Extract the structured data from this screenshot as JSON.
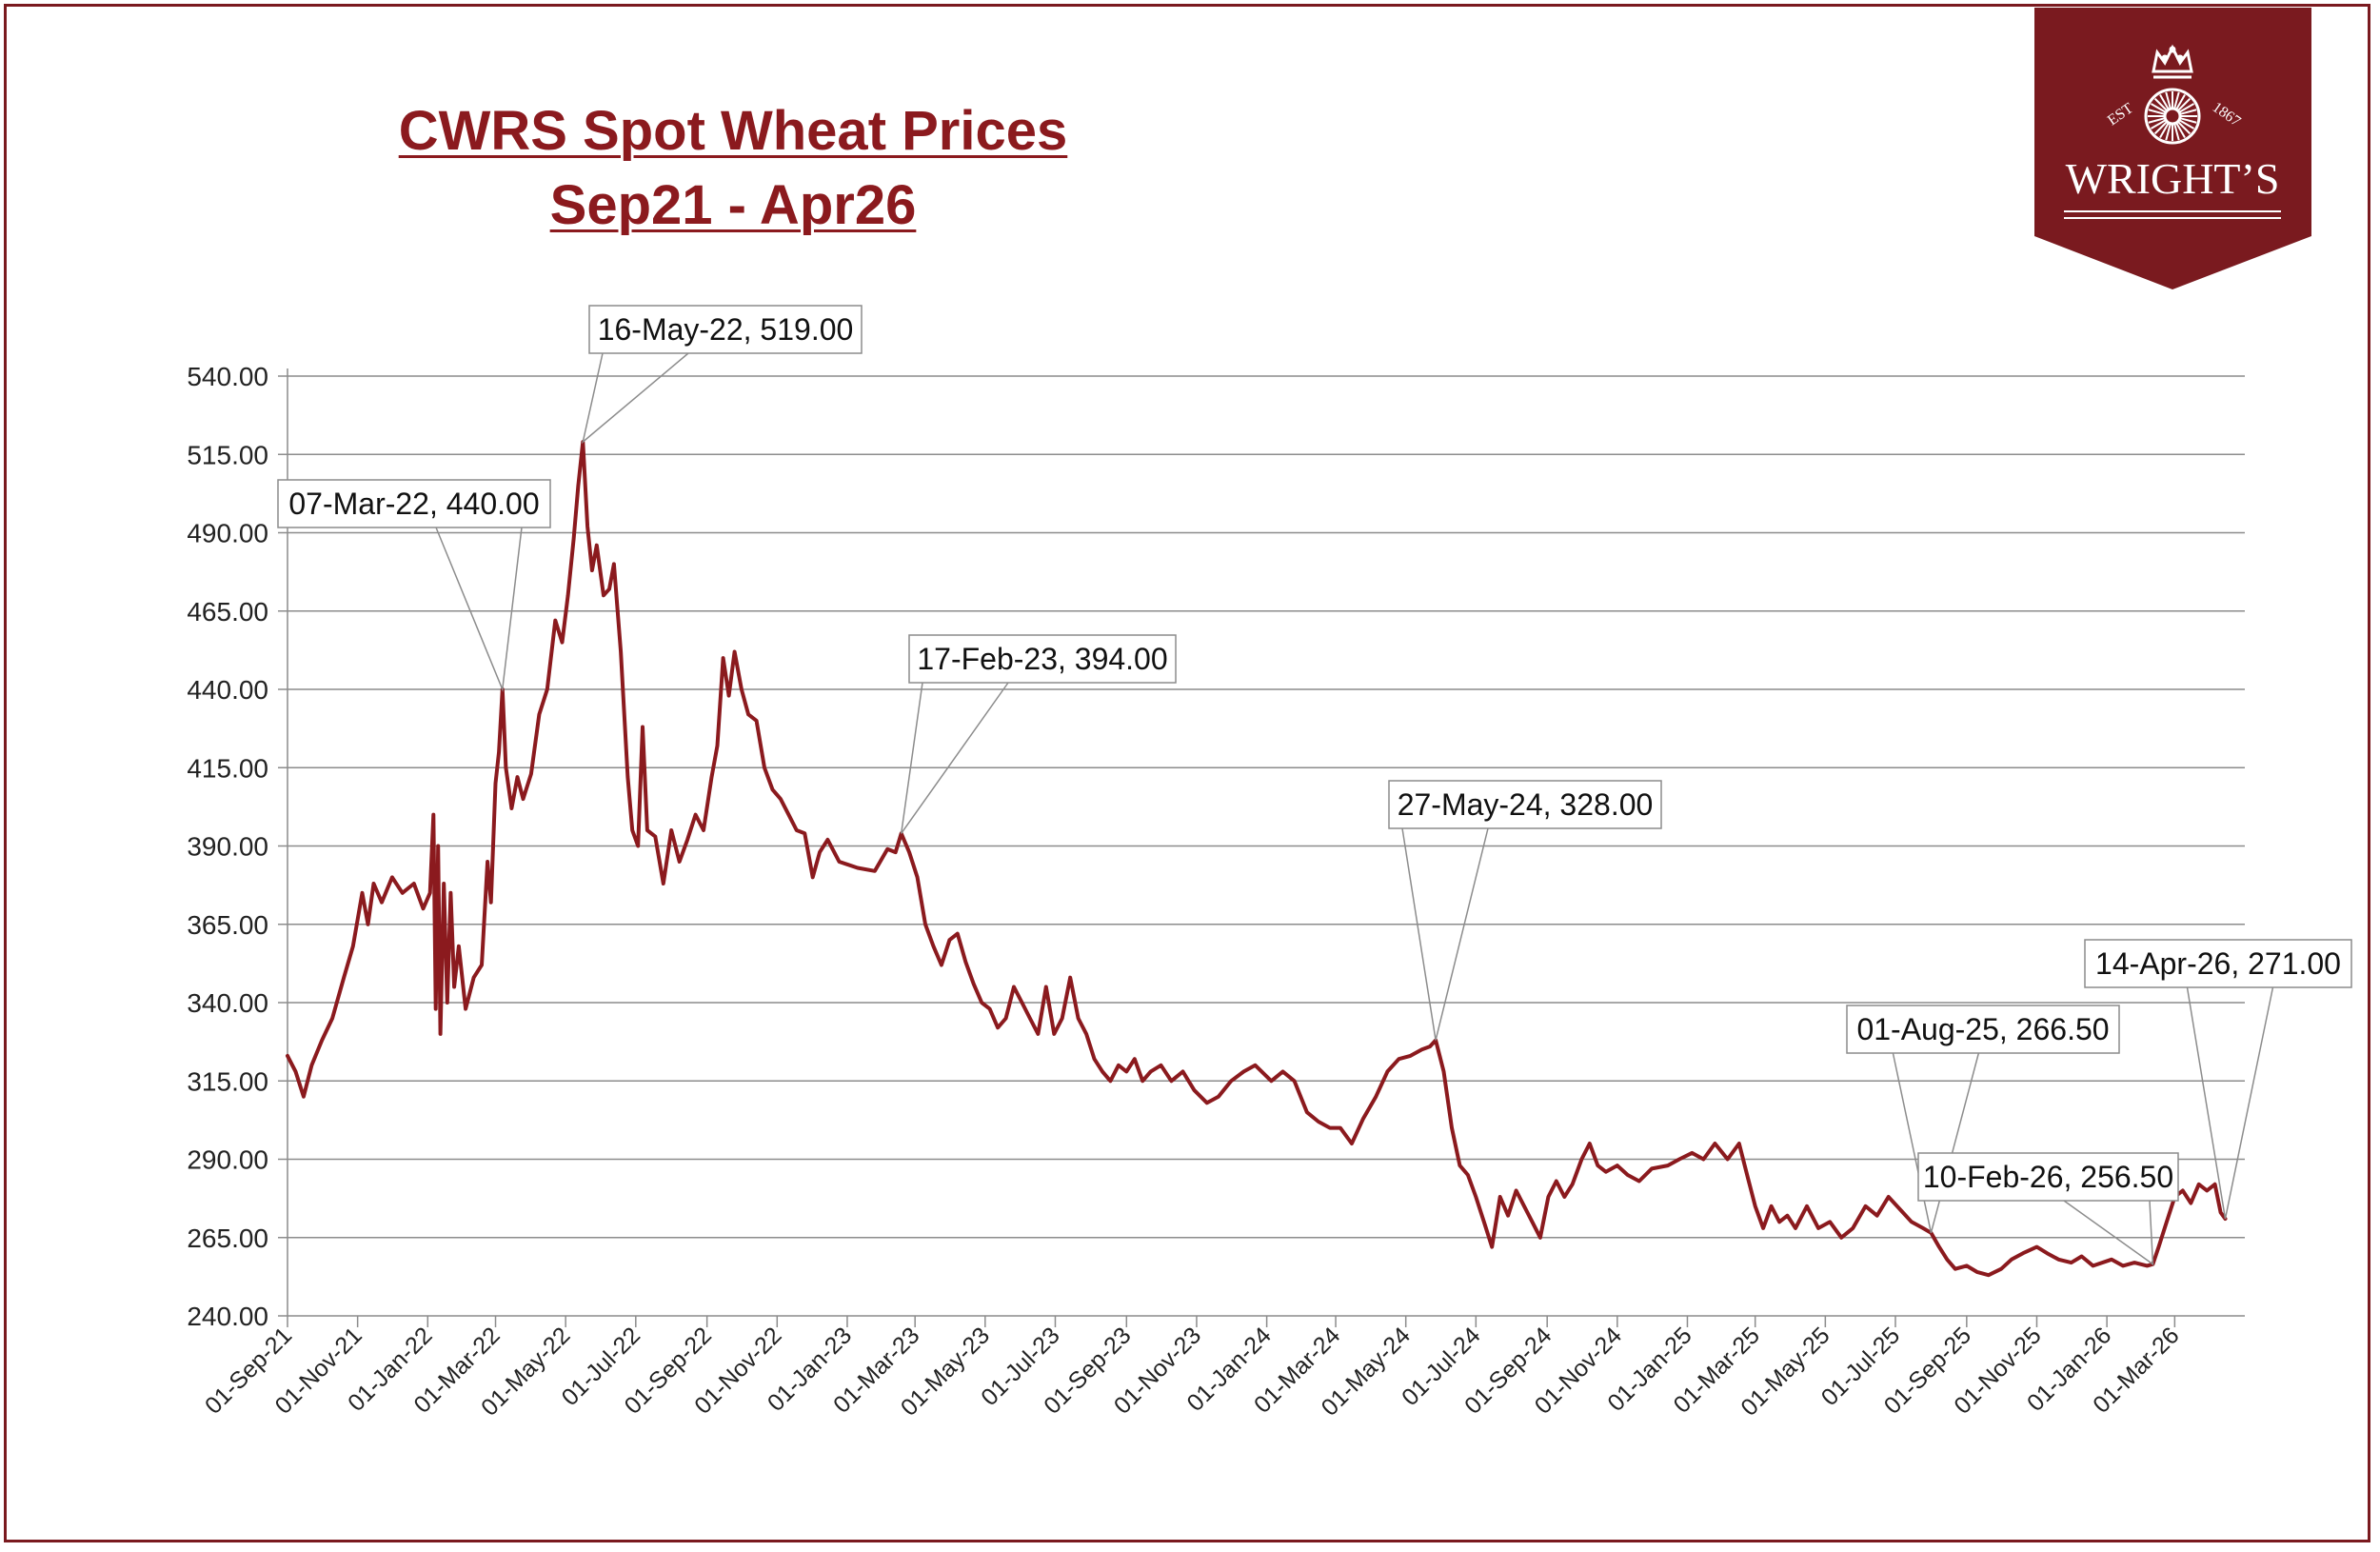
{
  "chart_data": {
    "type": "line",
    "title": "CWRS Spot Wheat Prices",
    "subtitle": "Sep21 - Apr26",
    "xlabel": "",
    "ylabel": "",
    "ylim": [
      240,
      540
    ],
    "y_ticks": [
      "240.00",
      "265.00",
      "290.00",
      "315.00",
      "340.00",
      "365.00",
      "390.00",
      "415.00",
      "440.00",
      "465.00",
      "490.00",
      "515.00",
      "540.00"
    ],
    "x_ticks": [
      "01-Sep-21",
      "01-Nov-21",
      "01-Jan-22",
      "01-Mar-22",
      "01-May-22",
      "01-Jul-22",
      "01-Sep-22",
      "01-Nov-22",
      "01-Jan-23",
      "01-Mar-23",
      "01-May-23",
      "01-Jul-23",
      "01-Sep-23",
      "01-Nov-23",
      "01-Jan-24",
      "01-Mar-24",
      "01-May-24",
      "01-Jul-24",
      "01-Sep-24",
      "01-Nov-24",
      "01-Jan-25",
      "01-Mar-25",
      "01-May-25",
      "01-Jul-25",
      "01-Sep-25",
      "01-Nov-25",
      "01-Jan-26",
      "01-Mar-26"
    ],
    "grid": true,
    "series": [
      {
        "name": "CWRS Spot Wheat Price",
        "color": "#8b1a1e",
        "points": [
          [
            "2021-09-01",
            323
          ],
          [
            "2021-09-08",
            318
          ],
          [
            "2021-09-15",
            310
          ],
          [
            "2021-09-22",
            320
          ],
          [
            "2021-10-01",
            328
          ],
          [
            "2021-10-10",
            335
          ],
          [
            "2021-10-20",
            348
          ],
          [
            "2021-10-28",
            358
          ],
          [
            "2021-11-05",
            375
          ],
          [
            "2021-11-10",
            365
          ],
          [
            "2021-11-15",
            378
          ],
          [
            "2021-11-22",
            372
          ],
          [
            "2021-12-01",
            380
          ],
          [
            "2021-12-10",
            375
          ],
          [
            "2021-12-20",
            378
          ],
          [
            "2021-12-28",
            370
          ],
          [
            "2022-01-03",
            375
          ],
          [
            "2022-01-06",
            400
          ],
          [
            "2022-01-08",
            338
          ],
          [
            "2022-01-10",
            390
          ],
          [
            "2022-01-12",
            330
          ],
          [
            "2022-01-15",
            378
          ],
          [
            "2022-01-18",
            340
          ],
          [
            "2022-01-21",
            375
          ],
          [
            "2022-01-24",
            345
          ],
          [
            "2022-01-28",
            358
          ],
          [
            "2022-02-03",
            338
          ],
          [
            "2022-02-10",
            348
          ],
          [
            "2022-02-17",
            352
          ],
          [
            "2022-02-22",
            385
          ],
          [
            "2022-02-25",
            372
          ],
          [
            "2022-03-01",
            410
          ],
          [
            "2022-03-04",
            420
          ],
          [
            "2022-03-07",
            440
          ],
          [
            "2022-03-10",
            415
          ],
          [
            "2022-03-15",
            402
          ],
          [
            "2022-03-20",
            412
          ],
          [
            "2022-03-25",
            405
          ],
          [
            "2022-04-01",
            413
          ],
          [
            "2022-04-08",
            432
          ],
          [
            "2022-04-15",
            440
          ],
          [
            "2022-04-22",
            462
          ],
          [
            "2022-04-28",
            455
          ],
          [
            "2022-05-03",
            470
          ],
          [
            "2022-05-08",
            488
          ],
          [
            "2022-05-12",
            505
          ],
          [
            "2022-05-16",
            519
          ],
          [
            "2022-05-20",
            492
          ],
          [
            "2022-05-24",
            478
          ],
          [
            "2022-05-28",
            486
          ],
          [
            "2022-06-03",
            470
          ],
          [
            "2022-06-08",
            472
          ],
          [
            "2022-06-12",
            480
          ],
          [
            "2022-06-18",
            452
          ],
          [
            "2022-06-24",
            412
          ],
          [
            "2022-06-28",
            395
          ],
          [
            "2022-07-03",
            390
          ],
          [
            "2022-07-07",
            428
          ],
          [
            "2022-07-11",
            395
          ],
          [
            "2022-07-18",
            393
          ],
          [
            "2022-07-25",
            378
          ],
          [
            "2022-08-01",
            395
          ],
          [
            "2022-08-08",
            385
          ],
          [
            "2022-08-15",
            392
          ],
          [
            "2022-08-22",
            400
          ],
          [
            "2022-08-29",
            395
          ],
          [
            "2022-09-05",
            412
          ],
          [
            "2022-09-10",
            422
          ],
          [
            "2022-09-15",
            450
          ],
          [
            "2022-09-20",
            438
          ],
          [
            "2022-09-25",
            452
          ],
          [
            "2022-10-01",
            440
          ],
          [
            "2022-10-07",
            432
          ],
          [
            "2022-10-14",
            430
          ],
          [
            "2022-10-21",
            415
          ],
          [
            "2022-10-28",
            408
          ],
          [
            "2022-11-04",
            405
          ],
          [
            "2022-11-11",
            400
          ],
          [
            "2022-11-18",
            395
          ],
          [
            "2022-11-25",
            394
          ],
          [
            "2022-12-02",
            380
          ],
          [
            "2022-12-08",
            388
          ],
          [
            "2022-12-15",
            392
          ],
          [
            "2022-12-25",
            385
          ],
          [
            "2023-01-10",
            383
          ],
          [
            "2023-01-25",
            382
          ],
          [
            "2023-02-05",
            389
          ],
          [
            "2023-02-12",
            388
          ],
          [
            "2023-02-17",
            394
          ],
          [
            "2023-02-24",
            388
          ],
          [
            "2023-03-03",
            380
          ],
          [
            "2023-03-10",
            365
          ],
          [
            "2023-03-17",
            358
          ],
          [
            "2023-03-24",
            352
          ],
          [
            "2023-03-31",
            360
          ],
          [
            "2023-04-07",
            362
          ],
          [
            "2023-04-14",
            353
          ],
          [
            "2023-04-21",
            346
          ],
          [
            "2023-04-28",
            340
          ],
          [
            "2023-05-05",
            338
          ],
          [
            "2023-05-12",
            332
          ],
          [
            "2023-05-19",
            335
          ],
          [
            "2023-05-26",
            345
          ],
          [
            "2023-06-02",
            340
          ],
          [
            "2023-06-09",
            335
          ],
          [
            "2023-06-16",
            330
          ],
          [
            "2023-06-23",
            345
          ],
          [
            "2023-06-30",
            330
          ],
          [
            "2023-07-07",
            335
          ],
          [
            "2023-07-14",
            348
          ],
          [
            "2023-07-21",
            335
          ],
          [
            "2023-07-28",
            330
          ],
          [
            "2023-08-04",
            322
          ],
          [
            "2023-08-11",
            318
          ],
          [
            "2023-08-18",
            315
          ],
          [
            "2023-08-25",
            320
          ],
          [
            "2023-09-01",
            318
          ],
          [
            "2023-09-08",
            322
          ],
          [
            "2023-09-15",
            315
          ],
          [
            "2023-09-22",
            318
          ],
          [
            "2023-10-01",
            320
          ],
          [
            "2023-10-10",
            315
          ],
          [
            "2023-10-20",
            318
          ],
          [
            "2023-10-30",
            312
          ],
          [
            "2023-11-10",
            308
          ],
          [
            "2023-11-20",
            310
          ],
          [
            "2023-12-01",
            315
          ],
          [
            "2023-12-12",
            318
          ],
          [
            "2023-12-22",
            320
          ],
          [
            "2024-01-05",
            315
          ],
          [
            "2024-01-15",
            318
          ],
          [
            "2024-01-25",
            315
          ],
          [
            "2024-02-05",
            305
          ],
          [
            "2024-02-15",
            302
          ],
          [
            "2024-02-25",
            300
          ],
          [
            "2024-03-05",
            300
          ],
          [
            "2024-03-15",
            295
          ],
          [
            "2024-03-25",
            303
          ],
          [
            "2024-04-05",
            310
          ],
          [
            "2024-04-15",
            318
          ],
          [
            "2024-04-25",
            322
          ],
          [
            "2024-05-05",
            323
          ],
          [
            "2024-05-15",
            325
          ],
          [
            "2024-05-22",
            326
          ],
          [
            "2024-05-27",
            328
          ],
          [
            "2024-06-03",
            318
          ],
          [
            "2024-06-10",
            300
          ],
          [
            "2024-06-17",
            288
          ],
          [
            "2024-06-24",
            285
          ],
          [
            "2024-07-01",
            278
          ],
          [
            "2024-07-08",
            270
          ],
          [
            "2024-07-15",
            262
          ],
          [
            "2024-07-22",
            278
          ],
          [
            "2024-07-29",
            272
          ],
          [
            "2024-08-05",
            280
          ],
          [
            "2024-08-12",
            275
          ],
          [
            "2024-08-19",
            270
          ],
          [
            "2024-08-26",
            265
          ],
          [
            "2024-09-02",
            278
          ],
          [
            "2024-09-09",
            283
          ],
          [
            "2024-09-16",
            278
          ],
          [
            "2024-09-23",
            282
          ],
          [
            "2024-10-01",
            290
          ],
          [
            "2024-10-08",
            295
          ],
          [
            "2024-10-15",
            288
          ],
          [
            "2024-10-22",
            286
          ],
          [
            "2024-11-01",
            288
          ],
          [
            "2024-11-10",
            285
          ],
          [
            "2024-11-20",
            283
          ],
          [
            "2024-12-01",
            287
          ],
          [
            "2024-12-15",
            288
          ],
          [
            "2024-12-25",
            290
          ],
          [
            "2025-01-05",
            292
          ],
          [
            "2025-01-15",
            290
          ],
          [
            "2025-01-25",
            295
          ],
          [
            "2025-02-05",
            290
          ],
          [
            "2025-02-15",
            295
          ],
          [
            "2025-02-22",
            285
          ],
          [
            "2025-03-01",
            275
          ],
          [
            "2025-03-08",
            268
          ],
          [
            "2025-03-15",
            275
          ],
          [
            "2025-03-22",
            270
          ],
          [
            "2025-03-29",
            272
          ],
          [
            "2025-04-05",
            268
          ],
          [
            "2025-04-15",
            275
          ],
          [
            "2025-04-25",
            268
          ],
          [
            "2025-05-05",
            270
          ],
          [
            "2025-05-15",
            265
          ],
          [
            "2025-05-25",
            268
          ],
          [
            "2025-06-05",
            275
          ],
          [
            "2025-06-15",
            272
          ],
          [
            "2025-06-25",
            278
          ],
          [
            "2025-07-05",
            274
          ],
          [
            "2025-07-15",
            270
          ],
          [
            "2025-07-25",
            268
          ],
          [
            "2025-08-01",
            266.5
          ],
          [
            "2025-08-08",
            262
          ],
          [
            "2025-08-15",
            258
          ],
          [
            "2025-08-22",
            255
          ],
          [
            "2025-09-01",
            256
          ],
          [
            "2025-09-10",
            254
          ],
          [
            "2025-09-20",
            253
          ],
          [
            "2025-10-01",
            255
          ],
          [
            "2025-10-10",
            258
          ],
          [
            "2025-10-20",
            260
          ],
          [
            "2025-11-01",
            262
          ],
          [
            "2025-11-10",
            260
          ],
          [
            "2025-11-20",
            258
          ],
          [
            "2025-12-01",
            257
          ],
          [
            "2025-12-10",
            259
          ],
          [
            "2025-12-20",
            256
          ],
          [
            "2026-01-05",
            258
          ],
          [
            "2026-01-15",
            256
          ],
          [
            "2026-01-25",
            257
          ],
          [
            "2026-02-05",
            256
          ],
          [
            "2026-02-10",
            256.5
          ],
          [
            "2026-02-15",
            262
          ],
          [
            "2026-02-22",
            270
          ],
          [
            "2026-03-01",
            278
          ],
          [
            "2026-03-08",
            280
          ],
          [
            "2026-03-15",
            276
          ],
          [
            "2026-03-22",
            282
          ],
          [
            "2026-03-29",
            280
          ],
          [
            "2026-04-05",
            282
          ],
          [
            "2026-04-10",
            273
          ],
          [
            "2026-04-14",
            271
          ]
        ]
      }
    ],
    "annotations": [
      {
        "date": "2022-03-07",
        "value": 440.0,
        "label": "07-Mar-22, 440.00"
      },
      {
        "date": "2022-05-16",
        "value": 519.0,
        "label": "16-May-22, 519.00"
      },
      {
        "date": "2023-02-17",
        "value": 394.0,
        "label": "17-Feb-23, 394.00"
      },
      {
        "date": "2024-05-27",
        "value": 328.0,
        "label": "27-May-24, 328.00"
      },
      {
        "date": "2025-08-01",
        "value": 266.5,
        "label": "01-Aug-25, 266.50"
      },
      {
        "date": "2026-02-10",
        "value": 256.5,
        "label": "10-Feb-26, 256.50"
      },
      {
        "date": "2026-04-14",
        "value": 271.0,
        "label": "14-Apr-26, 271.00"
      }
    ]
  },
  "logo": {
    "est_text": "EST",
    "year_text": "1867",
    "brand_text": "WRIGHT’S",
    "background_color": "#7a1a1f"
  },
  "colors": {
    "line": "#8b1a1e",
    "title": "#8b1a1e",
    "frame": "#7a1a1f",
    "grid": "#8c8c8c"
  }
}
